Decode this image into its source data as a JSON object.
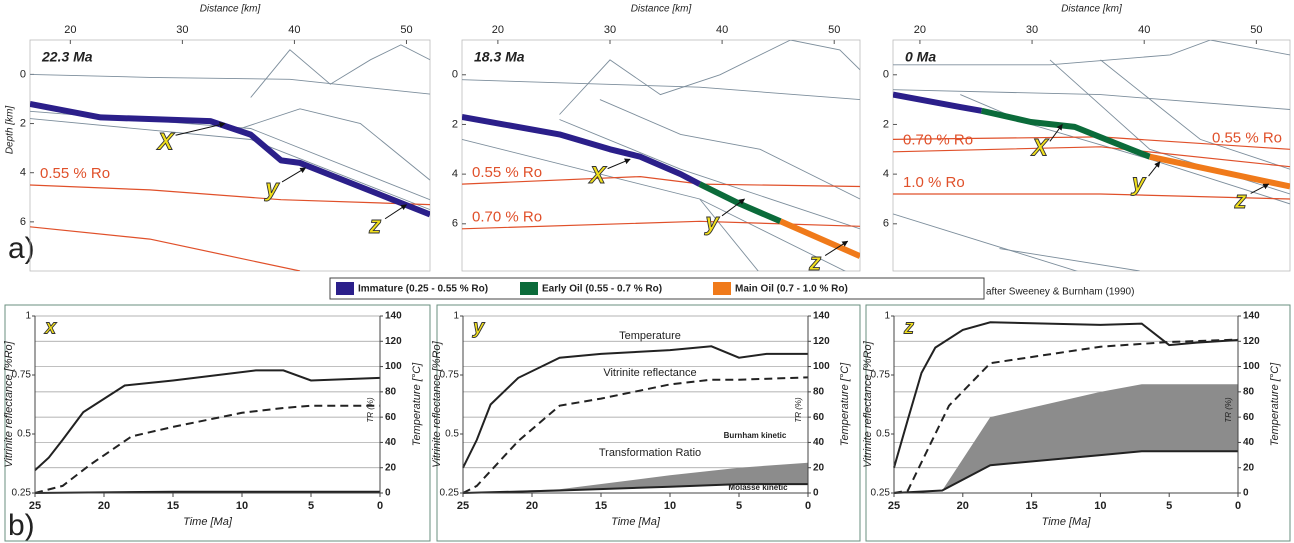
{
  "panel_labels": [
    "a)",
    "b)"
  ],
  "legend": {
    "items": [
      {
        "name": "Immature (0.25 - 0.55 % Ro)",
        "color": "#2b1f8a"
      },
      {
        "name": "Early Oil (0.55 - 0.7 % Ro)",
        "color": "#0b6b3a"
      },
      {
        "name": "Main Oil (0.7 - 1.0 % Ro)",
        "color": "#f07a1a"
      }
    ],
    "note": "after Sweeney & Burnham (1990)"
  },
  "chart_data": [
    {
      "type": "cross-section",
      "title": "22.3 Ma",
      "xlabel": "Distance [km]",
      "ylabel": "Depth [km]",
      "xlim": [
        16.4,
        52.1
      ],
      "ylim": [
        -1.4,
        8
      ],
      "y_inverted": true,
      "xticks": [
        20,
        30,
        40,
        50
      ],
      "yticks": [
        0,
        2,
        4,
        6
      ],
      "layers": [
        {
          "color": "#2b1f8a",
          "x": [
            16.4,
            22.7,
            32.5,
            36.1,
            38.8,
            40.5,
            52.1
          ],
          "y": [
            1.2,
            1.75,
            1.9,
            2.45,
            3.5,
            3.6,
            5.7
          ]
        }
      ],
      "isolines": [
        {
          "name": "0.55 % Ro",
          "color": "#e0502a",
          "x": [
            16.4,
            27.1,
            38.8,
            52.1
          ],
          "y": [
            4.5,
            4.7,
            5.1,
            5.3
          ]
        },
        {
          "color": "#e0502a",
          "x": [
            16.4,
            27.1,
            40.5
          ],
          "y": [
            6.2,
            6.7,
            8
          ]
        }
      ],
      "thrusts": [
        {
          "x": [
            16.4,
            27.1,
            39.6,
            52.1
          ],
          "y": [
            0,
            0.12,
            0.2,
            0.8
          ]
        },
        {
          "x": [
            36.1,
            39.6,
            43.2,
            46.8,
            49.5,
            52.1
          ],
          "y": [
            0.94,
            -1,
            0.4,
            -0.6,
            -1.2,
            -0.6
          ]
        },
        {
          "x": [
            16.4,
            36.1,
            52.1
          ],
          "y": [
            1.5,
            2.2,
            5.1
          ]
        },
        {
          "x": [
            16.4,
            36.1,
            52.1
          ],
          "y": [
            1.8,
            2.65,
            5.5
          ]
        },
        {
          "x": [
            35.2,
            40.5,
            45.9,
            52.1
          ],
          "y": [
            2.2,
            1.4,
            2,
            4.3
          ]
        }
      ],
      "markers": [
        {
          "label": "X",
          "x": 28.5,
          "y": 2.8,
          "tip_x": 33.8,
          "tip_y": 2
        },
        {
          "label": "y",
          "x": 38,
          "y": 4.7,
          "tip_x": 41,
          "tip_y": 3.8
        },
        {
          "label": "z",
          "x": 47.2,
          "y": 6.2,
          "tip_x": 50,
          "tip_y": 5.3
        }
      ]
    },
    {
      "type": "cross-section",
      "title": "18.3 Ma",
      "xlabel": "Distance [km]",
      "xlim": [
        16.8,
        52.3
      ],
      "ylim": [
        -1.4,
        7.9
      ],
      "y_inverted": true,
      "xticks": [
        20,
        30,
        40,
        50
      ],
      "yticks": [
        0,
        2,
        4,
        6
      ],
      "layers": [
        {
          "color": "#2b1f8a",
          "x": [
            16.8,
            25.5,
            30,
            32.7,
            36.3,
            38
          ],
          "y": [
            1.7,
            2.4,
            3,
            3.3,
            4,
            4.4
          ]
        },
        {
          "color": "#0b6b3a",
          "x": [
            38,
            41.6,
            45.2
          ],
          "y": [
            4.4,
            5.2,
            5.9
          ]
        },
        {
          "color": "#f07a1a",
          "x": [
            45.2,
            52.3
          ],
          "y": [
            5.9,
            7.3
          ]
        }
      ],
      "isolines": [
        {
          "name": "0.55 % Ro",
          "color": "#e0502a",
          "x": [
            16.8,
            32.7,
            38.1,
            52.3
          ],
          "y": [
            4.4,
            4.1,
            4.4,
            4.5
          ]
        },
        {
          "name": "0.70 % Ro",
          "color": "#e0502a",
          "x": [
            16.8,
            38,
            52.3
          ],
          "y": [
            6.2,
            5.9,
            6.1
          ]
        }
      ],
      "thrusts": [
        {
          "x": [
            16.8,
            38,
            52.3
          ],
          "y": [
            0.2,
            0.5,
            1
          ]
        },
        {
          "x": [
            25.5,
            30,
            34.5,
            39.8,
            46.1,
            50.5,
            52.3
          ],
          "y": [
            1.6,
            -0.6,
            0.8,
            0,
            -1.4,
            -1,
            -0.2
          ]
        },
        {
          "x": [
            25.5,
            36.3,
            52.3
          ],
          "y": [
            1.8,
            3.8,
            6.2
          ]
        },
        {
          "x": [
            29.1,
            36.3,
            43.4,
            52.3
          ],
          "y": [
            1,
            2.4,
            3,
            5
          ]
        },
        {
          "x": [
            16.8,
            38,
            52.3
          ],
          "y": [
            2.6,
            5,
            8.2
          ]
        },
        {
          "x": [
            38,
            43.4
          ],
          "y": [
            5,
            8
          ]
        }
      ],
      "markers": [
        {
          "label": "X",
          "x": 28.9,
          "y": 4.1,
          "tip_x": 31.8,
          "tip_y": 3.4
        },
        {
          "label": "y",
          "x": 39.1,
          "y": 6,
          "tip_x": 42,
          "tip_y": 5
        },
        {
          "label": "z",
          "x": 48.3,
          "y": 7.6,
          "tip_x": 51.2,
          "tip_y": 6.7
        }
      ]
    },
    {
      "type": "cross-section",
      "title": "0 Ma",
      "xlabel": "Distance [km]",
      "xlim": [
        17.6,
        53
      ],
      "ylim": [
        -1.4,
        7.9
      ],
      "y_inverted": true,
      "xticks": [
        20,
        30,
        40,
        50
      ],
      "yticks": [
        0,
        2,
        4,
        6
      ],
      "layers": [
        {
          "color": "#2b1f8a",
          "x": [
            17.6,
            23.6,
            25.5
          ],
          "y": [
            0.8,
            1.3,
            1.45
          ]
        },
        {
          "color": "#0b6b3a",
          "x": [
            25.5,
            29.9,
            33.8,
            38.8,
            40.5
          ],
          "y": [
            1.45,
            1.9,
            2.1,
            3,
            3.3
          ]
        },
        {
          "color": "#f07a1a",
          "x": [
            40.5,
            53
          ],
          "y": [
            3.3,
            4.5
          ]
        }
      ],
      "isolines": [
        {
          "name": "0.55 % Ro",
          "color": "#e0502a",
          "x": [
            17.6,
            36.1,
            53
          ],
          "y": [
            2.6,
            2.5,
            3
          ]
        },
        {
          "name": "0.70 % Ro",
          "color": "#e0502a",
          "x": [
            17.6,
            36.1,
            53
          ],
          "y": [
            3.1,
            2.9,
            3.7
          ]
        },
        {
          "name": "1.0 % Ro",
          "color": "#e0502a",
          "x": [
            17.6,
            36.1,
            53
          ],
          "y": [
            4.8,
            4.8,
            5
          ]
        }
      ],
      "thrusts": [
        {
          "x": [
            17.6,
            31.6,
            42.3,
            45.9,
            53
          ],
          "y": [
            -0.4,
            -0.4,
            -0.8,
            -1.4,
            -0.8
          ]
        },
        {
          "x": [
            17.6,
            36.1,
            53
          ],
          "y": [
            0.6,
            0.8,
            1.4
          ]
        },
        {
          "x": [
            23.6,
            29.9,
            40.5,
            53
          ],
          "y": [
            0.8,
            2,
            3.4,
            5.2
          ]
        },
        {
          "x": [
            31.6,
            40.5,
            53
          ],
          "y": [
            -0.6,
            3,
            4.8
          ]
        },
        {
          "x": [
            36.1,
            45,
            53
          ],
          "y": [
            -0.6,
            2.6,
            3.8
          ]
        },
        {
          "x": [
            17.6,
            36.1
          ],
          "y": [
            5.6,
            8.2
          ]
        },
        {
          "x": [
            27.1,
            39.6
          ],
          "y": [
            7,
            7.9
          ]
        }
      ],
      "markers": [
        {
          "label": "X",
          "x": 30.7,
          "y": 3,
          "tip_x": 32.7,
          "tip_y": 2
        },
        {
          "label": "y",
          "x": 39.5,
          "y": 4.4,
          "tip_x": 41.4,
          "tip_y": 3.5
        },
        {
          "label": "z",
          "x": 48.6,
          "y": 5.1,
          "tip_x": 51.1,
          "tip_y": 4.4
        }
      ]
    },
    {
      "type": "line",
      "title": "x",
      "xlabel": "Time [Ma]",
      "ylabel": "Vitrinite reflectance [%Ro]",
      "y2label": "Temperature [°C]",
      "tr_label": "TR (%)",
      "xlim": [
        25,
        0
      ],
      "xticks": [
        25,
        20,
        15,
        10,
        5,
        0
      ],
      "ylim": [
        0.25,
        1
      ],
      "yticks": [
        0.25,
        0.5,
        0.75,
        1
      ],
      "y2lim": [
        0,
        140
      ],
      "y2ticks": [
        0,
        20,
        40,
        60,
        80,
        100,
        120,
        140
      ],
      "grid": true,
      "series": [
        {
          "color": "#222",
          "style": "solid",
          "axis": "y2",
          "x": [
            25,
            24,
            23,
            21.5,
            18.5,
            15,
            9,
            7,
            5,
            0
          ],
          "values": [
            18,
            28,
            42,
            64,
            85,
            89,
            97,
            97,
            89,
            91
          ]
        },
        {
          "color": "#222",
          "style": "dashed",
          "axis": "y",
          "x": [
            25,
            23,
            21,
            18,
            15,
            10,
            7,
            5,
            2,
            0
          ],
          "values": [
            0.25,
            0.28,
            0.37,
            0.49,
            0.53,
            0.59,
            0.61,
            0.62,
            0.62,
            0.62
          ]
        },
        {
          "color": "#222",
          "style": "boundary",
          "axis": "y2",
          "x": [
            25,
            15,
            5,
            0
          ],
          "values": [
            0,
            1,
            1,
            1
          ]
        }
      ]
    },
    {
      "type": "line",
      "title": "y",
      "xlabel": "Time [Ma]",
      "ylabel": "Vitrinite reflectance [%Ro]",
      "y2label": "Temperature [°C]",
      "tr_label": "TR (%)",
      "annotations": [
        "Transformation Ratio"
      ],
      "xlim": [
        25,
        0
      ],
      "xticks": [
        25,
        20,
        15,
        10,
        5,
        0
      ],
      "ylim": [
        0.25,
        1
      ],
      "yticks": [
        0.25,
        0.5,
        0.75,
        1
      ],
      "y2lim": [
        0,
        140
      ],
      "y2ticks": [
        0,
        20,
        40,
        60,
        80,
        100,
        120,
        140
      ],
      "grid": true,
      "series": [
        {
          "name": "Temperature",
          "color": "#222",
          "style": "solid",
          "axis": "y2",
          "x": [
            25,
            24,
            23,
            21,
            18,
            15,
            10,
            7,
            5,
            3,
            0
          ],
          "values": [
            20,
            42,
            70,
            91,
            107,
            110,
            113,
            116,
            107,
            110,
            110
          ]
        },
        {
          "name": "Vitrinite reflectance",
          "color": "#222",
          "style": "dashed",
          "axis": "y",
          "x": [
            25,
            24,
            21,
            18,
            15,
            10,
            7,
            5,
            0
          ],
          "values": [
            0.25,
            0.28,
            0.47,
            0.62,
            0.65,
            0.71,
            0.73,
            0.73,
            0.74
          ]
        },
        {
          "name": "Burnham kinetic",
          "color": "#8c8c8c",
          "style": "area",
          "axis": "y2",
          "x": [
            25,
            18,
            10,
            5,
            0
          ],
          "values": [
            0,
            3,
            14,
            20,
            24
          ]
        },
        {
          "name": "Molasse kinetic",
          "color": "#222",
          "style": "boundary",
          "axis": "y2",
          "x": [
            25,
            18,
            10,
            5,
            0
          ],
          "values": [
            0,
            2,
            5,
            7,
            7
          ]
        }
      ]
    },
    {
      "type": "line",
      "title": "z",
      "xlabel": "Time [Ma]",
      "ylabel": "Vitrinite reflectance [%Ro]",
      "y2label": "Temperature [°C]",
      "tr_label": "TR (%)",
      "xlim": [
        25,
        0
      ],
      "xticks": [
        25,
        20,
        15,
        10,
        5,
        0
      ],
      "ylim": [
        0.25,
        1
      ],
      "yticks": [
        0.25,
        0.5,
        0.75,
        1
      ],
      "y2lim": [
        0,
        140
      ],
      "y2ticks": [
        0,
        20,
        40,
        60,
        80,
        100,
        120,
        140
      ],
      "grid": true,
      "series": [
        {
          "color": "#222",
          "style": "solid",
          "axis": "y2",
          "x": [
            25,
            24,
            23,
            22,
            20,
            18,
            10,
            7,
            5,
            3,
            0
          ],
          "values": [
            20,
            58,
            95,
            115,
            129,
            135,
            133,
            134,
            117,
            119,
            121
          ]
        },
        {
          "color": "#222",
          "style": "dashed",
          "axis": "y",
          "x": [
            25,
            24,
            23,
            21,
            18,
            10,
            5,
            0
          ],
          "values": [
            0.25,
            0.26,
            0.38,
            0.62,
            0.8,
            0.87,
            0.89,
            0.9
          ]
        },
        {
          "color": "#8c8c8c",
          "style": "area",
          "axis": "y2",
          "x": [
            25,
            21.5,
            18,
            10,
            7,
            0
          ],
          "values": [
            0,
            2,
            60,
            80,
            86,
            86
          ]
        },
        {
          "color": "#222",
          "style": "boundary",
          "axis": "y2",
          "x": [
            25,
            21.5,
            18,
            10,
            7,
            0
          ],
          "values": [
            0,
            2,
            22,
            30,
            33,
            33
          ]
        }
      ]
    }
  ]
}
